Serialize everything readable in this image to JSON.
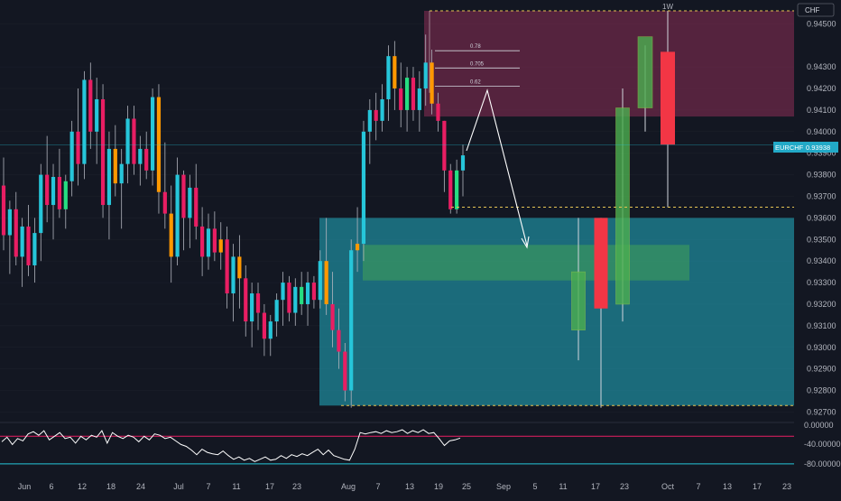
{
  "header": {
    "timeframe": "1W",
    "currency": "CHF"
  },
  "symbol_badge": {
    "symbol": "EURCHF",
    "price": "0.93938",
    "color": "#22a9c7"
  },
  "colors": {
    "bg": "#131722",
    "up": "#26c6da",
    "down": "#e91e63",
    "orange": "#ff9800",
    "green": "#26de81",
    "supply_zone": "#8c2d55",
    "demand_zone": "#22a4b8",
    "overlay_green": "#4caf50",
    "proj_up": "#4caf50",
    "proj_down": "#f23645",
    "rsi_line": "#ffffff",
    "rsi_upper": "#e91e63",
    "rsi_lower": "#26c6da",
    "dash_line": "#e5c453",
    "grid": "#1e222d"
  },
  "chart_data": {
    "type": "candlestick",
    "title": "",
    "symbol": "EURCHF",
    "timeframe": "1W",
    "last_price": 0.93938,
    "x_ticks": [
      "Jun",
      "6",
      "12",
      "18",
      "24",
      "Jul",
      "7",
      "11",
      "17",
      "23",
      "Aug",
      "7",
      "13",
      "19",
      "25",
      "Sep",
      "5",
      "11",
      "17",
      "23",
      "Oct",
      "7",
      "13",
      "17",
      "23"
    ],
    "y_ticks": [
      "0.94500",
      "0.94300",
      "0.94200",
      "0.94100",
      "0.94000",
      "0.93900",
      "0.93800",
      "0.93700",
      "0.93600",
      "0.93500",
      "0.93400",
      "0.93300",
      "0.93200",
      "0.93100",
      "0.93000",
      "0.92900",
      "0.92800",
      "0.92700"
    ],
    "ylim": [
      0.9266,
      0.9456
    ],
    "candles": [
      {
        "o": 0.9375,
        "h": 0.9388,
        "l": 0.9345,
        "c": 0.9352,
        "t": "down"
      },
      {
        "o": 0.9352,
        "h": 0.9368,
        "l": 0.9334,
        "c": 0.9364,
        "t": "up"
      },
      {
        "o": 0.9364,
        "h": 0.9372,
        "l": 0.9338,
        "c": 0.9342,
        "t": "down"
      },
      {
        "o": 0.9342,
        "h": 0.936,
        "l": 0.9328,
        "c": 0.9356,
        "t": "up"
      },
      {
        "o": 0.9356,
        "h": 0.9366,
        "l": 0.9333,
        "c": 0.9338,
        "t": "down"
      },
      {
        "o": 0.9338,
        "h": 0.936,
        "l": 0.933,
        "c": 0.9353,
        "t": "up"
      },
      {
        "o": 0.9353,
        "h": 0.9385,
        "l": 0.934,
        "c": 0.938,
        "t": "up"
      },
      {
        "o": 0.938,
        "h": 0.9398,
        "l": 0.9358,
        "c": 0.9366,
        "t": "down"
      },
      {
        "o": 0.9366,
        "h": 0.9385,
        "l": 0.935,
        "c": 0.9379,
        "t": "up"
      },
      {
        "o": 0.9379,
        "h": 0.9392,
        "l": 0.936,
        "c": 0.9364,
        "t": "down"
      },
      {
        "o": 0.9364,
        "h": 0.938,
        "l": 0.9355,
        "c": 0.9377,
        "t": "green"
      },
      {
        "o": 0.9377,
        "h": 0.9405,
        "l": 0.937,
        "c": 0.94,
        "t": "up"
      },
      {
        "o": 0.94,
        "h": 0.942,
        "l": 0.9375,
        "c": 0.9385,
        "t": "down"
      },
      {
        "o": 0.9385,
        "h": 0.9428,
        "l": 0.9378,
        "c": 0.9424,
        "t": "up"
      },
      {
        "o": 0.9424,
        "h": 0.9432,
        "l": 0.9392,
        "c": 0.94,
        "t": "down"
      },
      {
        "o": 0.94,
        "h": 0.9425,
        "l": 0.9385,
        "c": 0.9415,
        "t": "up"
      },
      {
        "o": 0.9415,
        "h": 0.9422,
        "l": 0.936,
        "c": 0.9366,
        "t": "down"
      },
      {
        "o": 0.9366,
        "h": 0.94,
        "l": 0.935,
        "c": 0.9392,
        "t": "up"
      },
      {
        "o": 0.9392,
        "h": 0.9403,
        "l": 0.937,
        "c": 0.9376,
        "t": "orange"
      },
      {
        "o": 0.9376,
        "h": 0.9392,
        "l": 0.9355,
        "c": 0.9385,
        "t": "up"
      },
      {
        "o": 0.9385,
        "h": 0.9412,
        "l": 0.9376,
        "c": 0.9406,
        "t": "up"
      },
      {
        "o": 0.9406,
        "h": 0.9412,
        "l": 0.938,
        "c": 0.9385,
        "t": "down"
      },
      {
        "o": 0.9385,
        "h": 0.9398,
        "l": 0.9375,
        "c": 0.9392,
        "t": "up"
      },
      {
        "o": 0.9392,
        "h": 0.94,
        "l": 0.9378,
        "c": 0.9382,
        "t": "down"
      },
      {
        "o": 0.9382,
        "h": 0.942,
        "l": 0.9375,
        "c": 0.9416,
        "t": "up"
      },
      {
        "o": 0.9416,
        "h": 0.9422,
        "l": 0.9362,
        "c": 0.9372,
        "t": "orange"
      },
      {
        "o": 0.9372,
        "h": 0.9395,
        "l": 0.9355,
        "c": 0.9362,
        "t": "down"
      },
      {
        "o": 0.9362,
        "h": 0.9375,
        "l": 0.933,
        "c": 0.9342,
        "t": "orange"
      },
      {
        "o": 0.9342,
        "h": 0.9388,
        "l": 0.9338,
        "c": 0.938,
        "t": "up"
      },
      {
        "o": 0.938,
        "h": 0.9382,
        "l": 0.9345,
        "c": 0.936,
        "t": "down"
      },
      {
        "o": 0.936,
        "h": 0.938,
        "l": 0.9346,
        "c": 0.9374,
        "t": "up"
      },
      {
        "o": 0.9374,
        "h": 0.9385,
        "l": 0.935,
        "c": 0.9356,
        "t": "down"
      },
      {
        "o": 0.9356,
        "h": 0.9365,
        "l": 0.9333,
        "c": 0.9342,
        "t": "down"
      },
      {
        "o": 0.9342,
        "h": 0.9362,
        "l": 0.9336,
        "c": 0.9355,
        "t": "up"
      },
      {
        "o": 0.9355,
        "h": 0.9363,
        "l": 0.934,
        "c": 0.9344,
        "t": "down"
      },
      {
        "o": 0.9344,
        "h": 0.9358,
        "l": 0.9336,
        "c": 0.935,
        "t": "orange"
      },
      {
        "o": 0.935,
        "h": 0.9356,
        "l": 0.9318,
        "c": 0.9325,
        "t": "down"
      },
      {
        "o": 0.9325,
        "h": 0.9348,
        "l": 0.9312,
        "c": 0.9342,
        "t": "up"
      },
      {
        "o": 0.9342,
        "h": 0.9352,
        "l": 0.9318,
        "c": 0.9332,
        "t": "orange"
      },
      {
        "o": 0.9332,
        "h": 0.9338,
        "l": 0.9305,
        "c": 0.9312,
        "t": "down"
      },
      {
        "o": 0.9312,
        "h": 0.933,
        "l": 0.93,
        "c": 0.9325,
        "t": "up"
      },
      {
        "o": 0.9325,
        "h": 0.933,
        "l": 0.9308,
        "c": 0.9316,
        "t": "down"
      },
      {
        "o": 0.9316,
        "h": 0.932,
        "l": 0.9296,
        "c": 0.9304,
        "t": "down"
      },
      {
        "o": 0.9304,
        "h": 0.9315,
        "l": 0.9296,
        "c": 0.9312,
        "t": "up"
      },
      {
        "o": 0.9312,
        "h": 0.9325,
        "l": 0.9305,
        "c": 0.9322,
        "t": "up"
      },
      {
        "o": 0.9322,
        "h": 0.9335,
        "l": 0.931,
        "c": 0.933,
        "t": "up"
      },
      {
        "o": 0.933,
        "h": 0.9333,
        "l": 0.9312,
        "c": 0.9316,
        "t": "down"
      },
      {
        "o": 0.9316,
        "h": 0.9332,
        "l": 0.931,
        "c": 0.9328,
        "t": "up"
      },
      {
        "o": 0.9328,
        "h": 0.9335,
        "l": 0.9315,
        "c": 0.932,
        "t": "green"
      },
      {
        "o": 0.932,
        "h": 0.9335,
        "l": 0.931,
        "c": 0.933,
        "t": "up"
      },
      {
        "o": 0.933,
        "h": 0.9333,
        "l": 0.9318,
        "c": 0.9322,
        "t": "down"
      },
      {
        "o": 0.9322,
        "h": 0.9345,
        "l": 0.9318,
        "c": 0.934,
        "t": "up"
      },
      {
        "o": 0.934,
        "h": 0.936,
        "l": 0.9315,
        "c": 0.932,
        "t": "orange"
      },
      {
        "o": 0.932,
        "h": 0.9335,
        "l": 0.93,
        "c": 0.9308,
        "t": "down"
      },
      {
        "o": 0.9308,
        "h": 0.9318,
        "l": 0.929,
        "c": 0.9298,
        "t": "down"
      },
      {
        "o": 0.9298,
        "h": 0.9302,
        "l": 0.9275,
        "c": 0.928,
        "t": "down"
      },
      {
        "o": 0.928,
        "h": 0.935,
        "l": 0.9272,
        "c": 0.9345,
        "t": "up"
      },
      {
        "o": 0.9345,
        "h": 0.9365,
        "l": 0.9335,
        "c": 0.9348,
        "t": "orange"
      },
      {
        "o": 0.9348,
        "h": 0.9405,
        "l": 0.934,
        "c": 0.94,
        "t": "up"
      },
      {
        "o": 0.94,
        "h": 0.9415,
        "l": 0.9385,
        "c": 0.941,
        "t": "up"
      },
      {
        "o": 0.941,
        "h": 0.9418,
        "l": 0.9396,
        "c": 0.9405,
        "t": "down"
      },
      {
        "o": 0.9405,
        "h": 0.9422,
        "l": 0.94,
        "c": 0.9415,
        "t": "up"
      },
      {
        "o": 0.9415,
        "h": 0.944,
        "l": 0.9405,
        "c": 0.9435,
        "t": "up"
      },
      {
        "o": 0.9435,
        "h": 0.9442,
        "l": 0.941,
        "c": 0.942,
        "t": "orange"
      },
      {
        "o": 0.942,
        "h": 0.9432,
        "l": 0.9402,
        "c": 0.941,
        "t": "down"
      },
      {
        "o": 0.941,
        "h": 0.943,
        "l": 0.94,
        "c": 0.9425,
        "t": "green"
      },
      {
        "o": 0.9425,
        "h": 0.943,
        "l": 0.9405,
        "c": 0.941,
        "t": "down"
      },
      {
        "o": 0.941,
        "h": 0.9428,
        "l": 0.94,
        "c": 0.942,
        "t": "up"
      },
      {
        "o": 0.942,
        "h": 0.9445,
        "l": 0.9412,
        "c": 0.9432,
        "t": "up"
      },
      {
        "o": 0.9432,
        "h": 0.9438,
        "l": 0.9408,
        "c": 0.9413,
        "t": "orange"
      },
      {
        "o": 0.9413,
        "h": 0.9418,
        "l": 0.94,
        "c": 0.9405,
        "t": "down"
      },
      {
        "o": 0.9405,
        "h": 0.9405,
        "l": 0.9372,
        "c": 0.9382,
        "t": "down"
      },
      {
        "o": 0.9382,
        "h": 0.9385,
        "l": 0.9362,
        "c": 0.9364,
        "t": "down"
      },
      {
        "o": 0.9364,
        "h": 0.9387,
        "l": 0.9362,
        "c": 0.9382,
        "t": "green"
      },
      {
        "o": 0.9382,
        "h": 0.9394,
        "l": 0.937,
        "c": 0.9389,
        "t": "up"
      }
    ],
    "projection_candles": [
      {
        "o": 0.9308,
        "h": 0.936,
        "l": 0.9294,
        "c": 0.9335,
        "t": "up"
      },
      {
        "o": 0.936,
        "h": 0.936,
        "l": 0.9272,
        "c": 0.9318,
        "t": "down"
      },
      {
        "o": 0.932,
        "h": 0.942,
        "l": 0.9312,
        "c": 0.9411,
        "t": "up"
      },
      {
        "o": 0.9411,
        "h": 0.944,
        "l": 0.94,
        "c": 0.9444,
        "t": "up"
      },
      {
        "o": 0.9437,
        "h": 0.9456,
        "l": 0.9365,
        "c": 0.9394,
        "t": "down"
      }
    ],
    "supply_zone": [
      0.9407,
      0.9456
    ],
    "demand_zone": [
      0.9273,
      0.936
    ],
    "fib_levels": [
      {
        "label": "0.78",
        "value": 0.94375
      },
      {
        "label": "0.705",
        "value": 0.94295
      },
      {
        "label": "0.62",
        "value": 0.9421
      }
    ],
    "dashed_levels": [
      0.9456,
      0.9365,
      0.9273
    ],
    "rsi": {
      "y_ticks": [
        "0.00000",
        "-40.00000",
        "-80.00000"
      ],
      "ylim": [
        -92,
        6
      ],
      "upper": -20,
      "lower": -80,
      "values": [
        -32,
        -22,
        -38,
        -25,
        -30,
        -15,
        -10,
        -18,
        -8,
        -28,
        -20,
        -12,
        -25,
        -22,
        -35,
        -20,
        -28,
        -18,
        -22,
        -8,
        -35,
        -12,
        -20,
        -25,
        -18,
        -22,
        -32,
        -20,
        -28,
        -15,
        -18,
        -25,
        -22,
        -30,
        -38,
        -42,
        -50,
        -60,
        -48,
        -55,
        -58,
        -60,
        -52,
        -62,
        -70,
        -65,
        -72,
        -68,
        -75,
        -70,
        -65,
        -72,
        -70,
        -62,
        -68,
        -60,
        -64,
        -58,
        -62,
        -55,
        -48,
        -60,
        -50,
        -62,
        -66,
        -70,
        -72,
        -48,
        -12,
        -15,
        -12,
        -10,
        -14,
        -8,
        -12,
        -10,
        -6,
        -14,
        -8,
        -12,
        -6,
        -14,
        -12,
        -25,
        -40,
        -30,
        -28,
        -24
      ]
    }
  }
}
